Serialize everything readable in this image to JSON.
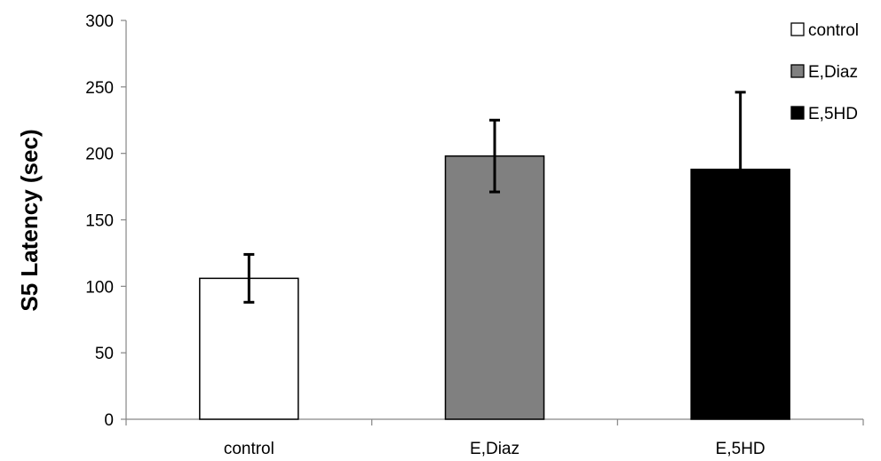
{
  "chart_data": {
    "type": "bar",
    "title": "",
    "xlabel": "",
    "ylabel": "S5 Latency (sec)",
    "categories": [
      "control",
      "E,Diaz",
      "E,5HD"
    ],
    "values": [
      106,
      198,
      188
    ],
    "error": [
      18,
      27,
      58
    ],
    "colors": [
      "#ffffff",
      "#808080",
      "#000000"
    ],
    "ylim": [
      0,
      300
    ],
    "yticks": [
      "0",
      "50",
      "100",
      "150",
      "200",
      "250",
      "300"
    ],
    "ytick_values": [
      0,
      50,
      100,
      150,
      200,
      250,
      300
    ],
    "grid": false,
    "legend_position": "top-right",
    "legend": [
      {
        "label": "control",
        "color": "#ffffff"
      },
      {
        "label": "E,Diaz",
        "color": "#808080"
      },
      {
        "label": "E,5HD",
        "color": "#000000"
      }
    ]
  }
}
